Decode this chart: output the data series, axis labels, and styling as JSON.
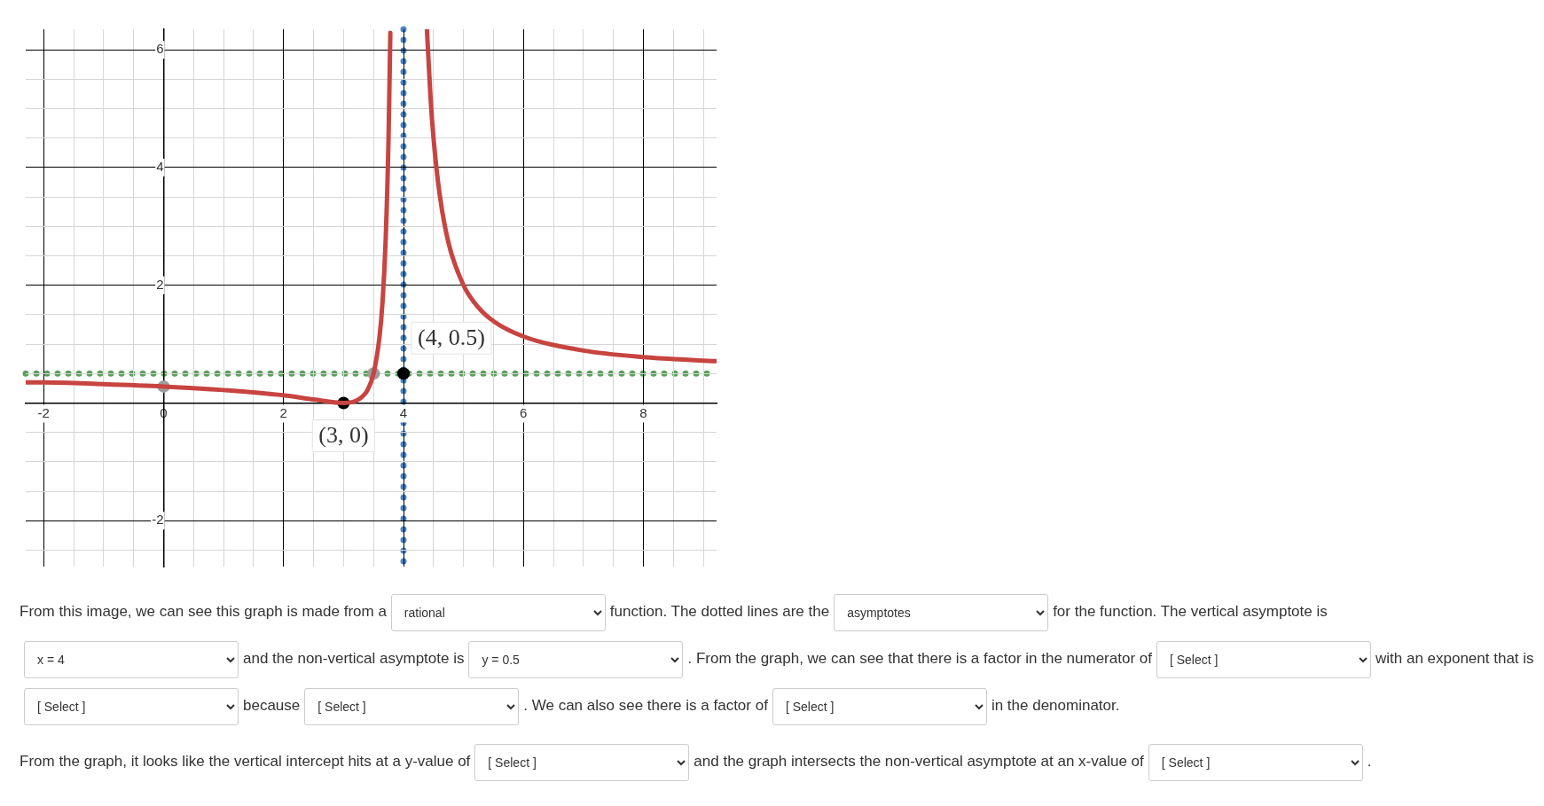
{
  "chart_data": {
    "type": "line",
    "xlim": [
      -2.3,
      9.22
    ],
    "ylim": [
      -2.78,
      6.35
    ],
    "xticks": [
      -2,
      {
        "value": -1.5,
        "label": null
      },
      {
        "value": -1,
        "label": null
      },
      {
        "value": -0.5,
        "label": null
      },
      0,
      {
        "value": 0.5,
        "label": null
      },
      {
        "value": 1,
        "label": null
      },
      {
        "value": 1.5,
        "label": null
      },
      2,
      {
        "value": 2.5,
        "label": null
      },
      {
        "value": 3,
        "label": null
      },
      {
        "value": 3.5,
        "label": null
      },
      4,
      {
        "value": 4.5,
        "label": null
      },
      {
        "value": 5,
        "label": null
      },
      {
        "value": 5.5,
        "label": null
      },
      6,
      {
        "value": 6.5,
        "label": null
      },
      {
        "value": 7,
        "label": null
      },
      {
        "value": 7.5,
        "label": null
      },
      8,
      {
        "value": 8.5,
        "label": null
      },
      {
        "value": 9,
        "label": null
      }
    ],
    "yticks": [
      {
        "value": -2.5,
        "label": null
      },
      -2,
      {
        "value": -1.5,
        "label": null
      },
      {
        "value": -1,
        "label": null
      },
      {
        "value": -0.5,
        "label": null
      },
      {
        "value": 0,
        "label": null
      },
      {
        "value": 0.5,
        "label": null
      },
      {
        "value": 1,
        "label": null
      },
      {
        "value": 1.5,
        "label": null
      },
      2,
      {
        "value": 2.5,
        "label": null
      },
      {
        "value": 3,
        "label": null
      },
      {
        "value": 3.5,
        "label": null
      },
      4,
      {
        "value": 4.5,
        "label": null
      },
      {
        "value": 5,
        "label": null
      },
      {
        "value": 5.5,
        "label": null
      },
      6
    ],
    "grid": true,
    "legend": false,
    "series": [
      {
        "color": "#c74440",
        "marker": "none",
        "x": [
          -2.3,
          -2,
          -1,
          0,
          1,
          2,
          2.5,
          3,
          3.25,
          3.4,
          3.5,
          3.6,
          3.65,
          3.7,
          3.75,
          3.78,
          4,
          4.39,
          4.45,
          4.5,
          4.6,
          4.75,
          5,
          5.25,
          5.5,
          6,
          7,
          8,
          9,
          9.22
        ],
        "values": [
          0.35,
          0.35,
          0.32,
          0.28,
          0.22,
          0.13,
          0.06,
          0,
          0.06,
          0.22,
          0.5,
          1.13,
          1.72,
          2.72,
          4.5,
          6.29,
          null,
          6.35,
          5.19,
          4.5,
          3.56,
          2.72,
          2,
          1.62,
          1.39,
          1.13,
          0.89,
          0.78,
          0.72,
          0.71
        ]
      },
      {
        "type": "scatter",
        "color": "#9e9e9e",
        "marker": "circle",
        "x": [
          0,
          3.5
        ],
        "values": [
          0.28,
          0.5
        ]
      },
      {
        "type": "scatter",
        "color": "#000000",
        "marker": "circle",
        "x": [
          3,
          4
        ],
        "values": [
          0,
          0.5
        ]
      }
    ],
    "ref_lines": [
      {
        "axis": "x",
        "value": 4,
        "color": "#4a86c8",
        "line_style": "dotted"
      },
      {
        "axis": "y",
        "value": 0.5,
        "color": "#5aa05a",
        "line_style": "dotted"
      }
    ],
    "annotations": [
      {
        "text": "(3, 0)",
        "x": 3,
        "y": 0
      },
      {
        "text": "(4, 0.5)",
        "x": 4,
        "y": 0.5
      },
      "From this image, we can see this graph is made from a",
      "rational",
      "function. The dotted lines are the",
      "asymptotes",
      "for the function. The vertical asymptote is",
      "x = 4",
      "and the non-vertical asymptote is",
      "y = 0.5",
      ". From the graph, we can see that there is a factor in the numerator of",
      "[ Select ]",
      "with an exponent that is",
      "[ Select ]",
      "because",
      "[ Select ]",
      ". We can also see there is a factor of",
      "[ Select ]",
      "in the denominator.",
      "From the graph, it looks like the vertical intercept hits at a y-value of",
      "[ Select ]",
      "and the graph intersects the non-vertical asymptote at an x-value of",
      "[ Select ]",
      "."
    ]
  }
}
